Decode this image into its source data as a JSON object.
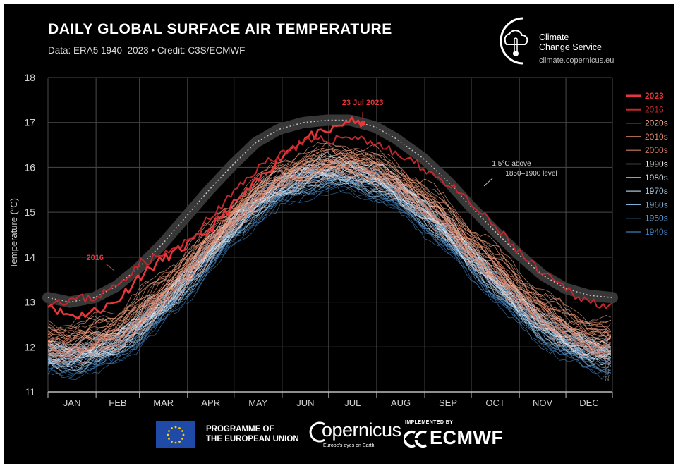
{
  "chart_data": {
    "type": "line",
    "title": "DAILY GLOBAL SURFACE AIR TEMPERATURE",
    "subtitle": "Data: ERA5 1940–2023 • Credit: C3S/ECMWF",
    "ylabel": "Temperature (°C)",
    "ylim": [
      11,
      18
    ],
    "yticks": [
      "11",
      "12",
      "13",
      "14",
      "15",
      "16",
      "17",
      "18"
    ],
    "xlim": [
      1,
      365
    ],
    "months": [
      "JAN",
      "FEB",
      "MAR",
      "APR",
      "MAY",
      "JUN",
      "JUL",
      "AUG",
      "SEP",
      "OCT",
      "NOV",
      "DEC"
    ],
    "grid": true,
    "legend_position": "right",
    "colors": {
      "2023": "#e8363a",
      "2016": "#c0282c",
      "2020s": "#f0a283",
      "2010s": "#e48c6e",
      "2000s": "#cf7a66",
      "1990s": "#f3eaea",
      "1980s": "#c9d6de",
      "1970s": "#a3c4da",
      "1960s": "#7fb0d6",
      "1950s": "#5b95c7",
      "1940s": "#3d7bb7",
      "threshold": "#3a3a3a"
    },
    "legend": [
      "2023",
      "2016",
      "2020s",
      "2010s",
      "2000s",
      "1990s",
      "1980s",
      "1970s",
      "1960s",
      "1950s",
      "1940s"
    ],
    "series": [
      {
        "name": "2023",
        "x": [
          1,
          10,
          20,
          31,
          45,
          59,
          75,
          90,
          105,
          120,
          135,
          150,
          160,
          170,
          180,
          190,
          195,
          200,
          204
        ],
        "y": [
          13.0,
          12.75,
          12.7,
          12.8,
          13.0,
          13.55,
          13.95,
          14.25,
          14.6,
          15.15,
          15.65,
          16.2,
          16.5,
          16.7,
          16.75,
          16.95,
          17.05,
          16.95,
          16.98
        ]
      },
      {
        "name": "2016",
        "x": [
          1,
          15,
          31,
          45,
          59,
          75,
          90,
          105,
          120,
          135,
          150,
          166,
          181,
          196,
          212,
          225,
          243,
          260,
          273,
          290,
          305,
          320,
          335,
          350,
          365
        ],
        "y": [
          13.0,
          13.05,
          13.1,
          13.35,
          13.85,
          14.05,
          14.3,
          14.85,
          15.4,
          15.95,
          16.3,
          16.55,
          16.6,
          16.7,
          16.55,
          16.3,
          16.0,
          15.6,
          15.2,
          14.65,
          14.1,
          13.6,
          13.3,
          13.0,
          12.95
        ]
      }
    ],
    "band_centers": {
      "x": [
        1,
        15,
        31,
        45,
        59,
        75,
        90,
        105,
        120,
        135,
        150,
        166,
        181,
        196,
        212,
        225,
        243,
        260,
        273,
        290,
        305,
        320,
        335,
        350,
        365
      ],
      "1940s": [
        11.65,
        11.6,
        11.7,
        11.9,
        12.25,
        12.75,
        13.3,
        13.9,
        14.5,
        15.0,
        15.35,
        15.6,
        15.7,
        15.7,
        15.55,
        15.3,
        14.85,
        14.3,
        13.85,
        13.25,
        12.75,
        12.3,
        11.95,
        11.75,
        11.65
      ],
      "1990s": [
        12.0,
        11.95,
        12.05,
        12.25,
        12.6,
        13.1,
        13.65,
        14.25,
        14.85,
        15.35,
        15.7,
        15.95,
        16.05,
        16.05,
        15.9,
        15.65,
        15.2,
        14.65,
        14.2,
        13.6,
        13.1,
        12.65,
        12.3,
        12.1,
        12.0
      ],
      "2020s": [
        12.55,
        12.5,
        12.6,
        12.8,
        13.15,
        13.6,
        14.1,
        14.65,
        15.2,
        15.7,
        16.05,
        16.3,
        16.4,
        16.45,
        16.3,
        16.05,
        15.65,
        15.15,
        14.7,
        14.15,
        13.65,
        13.2,
        12.85,
        12.65,
        12.55
      ]
    },
    "threshold": {
      "label_line1": "1.5°C above",
      "label_line2": "1850–1900 level",
      "x": [
        1,
        15,
        31,
        45,
        59,
        75,
        90,
        105,
        120,
        135,
        150,
        166,
        181,
        196,
        212,
        225,
        243,
        260,
        273,
        290,
        305,
        320,
        335,
        350,
        365
      ],
      "y": [
        13.1,
        13.0,
        13.1,
        13.35,
        13.75,
        14.3,
        14.9,
        15.5,
        16.05,
        16.55,
        16.85,
        17.0,
        17.05,
        17.05,
        16.9,
        16.65,
        16.2,
        15.65,
        15.15,
        14.55,
        14.05,
        13.6,
        13.3,
        13.15,
        13.1
      ]
    },
    "annotations": [
      {
        "text": "23 Jul 2023",
        "x": 204,
        "y": 16.98,
        "color": "#e8363a"
      },
      {
        "text": "2016",
        "x": 45,
        "y": 13.75,
        "color": "#e8363a"
      }
    ]
  },
  "header": {
    "brand_name_1": "Climate",
    "brand_name_2": "Change Service",
    "brand_url": "climate.copernicus.eu"
  },
  "footer": {
    "eu_line1": "PROGRAMME OF",
    "eu_line2": "THE EUROPEAN UNION",
    "copernicus_word": "opernicus",
    "copernicus_tag": "Europe's eyes on Earth",
    "ecmwf_implemented": "IMPLEMENTED BY",
    "ecmwf_word": "ECMWF"
  },
  "created_note": "created: 2023-07-25"
}
